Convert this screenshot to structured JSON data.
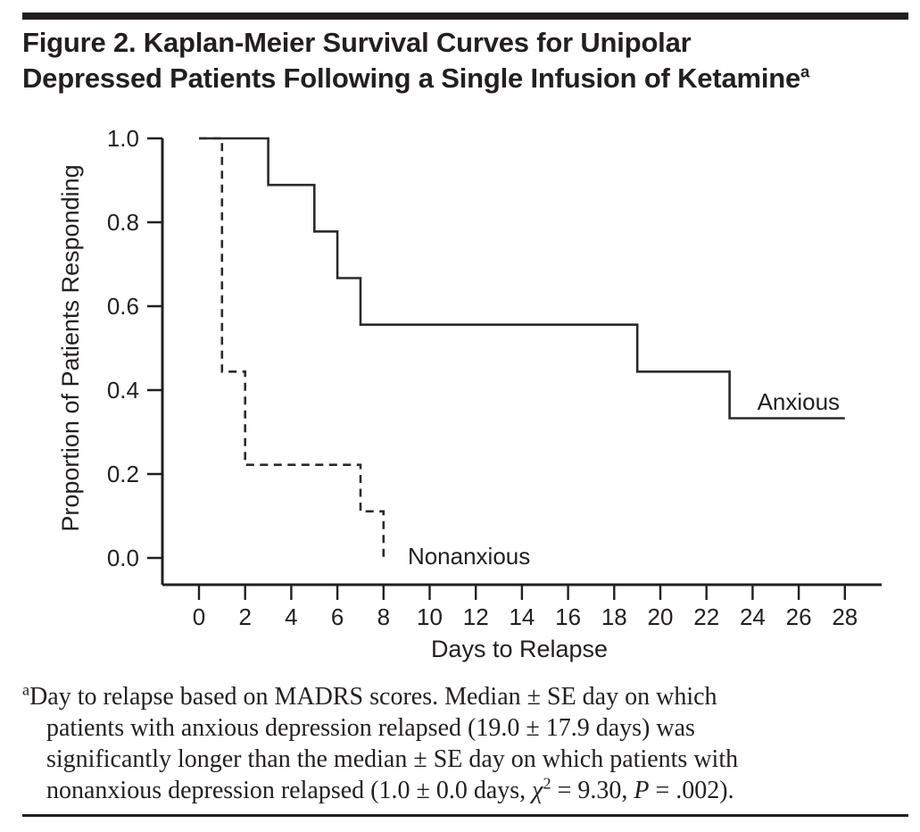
{
  "page": {
    "background": "#ffffff",
    "ink_color": "#231f20",
    "title": {
      "line1": "Figure 2. Kaplan-Meier Survival Curves for Unipolar",
      "line2": "Depressed Patients Following a Single Infusion of Ketamine",
      "superscript": "a"
    }
  },
  "chart_data": {
    "type": "line",
    "variant": "kaplan-meier-step",
    "title": "",
    "xlabel": "Days to Relapse",
    "ylabel": "Proportion of Patients Responding",
    "xlim": [
      0,
      28
    ],
    "ylim": [
      0.0,
      1.0
    ],
    "grid": false,
    "legend_position": "inline-labels",
    "line_color": "#2b2a29",
    "xticks": [
      {
        "value": 0,
        "label": "0"
      },
      {
        "value": 2,
        "label": "2"
      },
      {
        "value": 4,
        "label": "4"
      },
      {
        "value": 6,
        "label": "6"
      },
      {
        "value": 8,
        "label": "8"
      },
      {
        "value": 10,
        "label": "10"
      },
      {
        "value": 12,
        "label": "12"
      },
      {
        "value": 14,
        "label": "14"
      },
      {
        "value": 16,
        "label": "16"
      },
      {
        "value": 18,
        "label": "18"
      },
      {
        "value": 20,
        "label": "20"
      },
      {
        "value": 22,
        "label": "22"
      },
      {
        "value": 24,
        "label": "24"
      },
      {
        "value": 26,
        "label": "26"
      },
      {
        "value": 28,
        "label": "28"
      }
    ],
    "yticks": [
      {
        "value": 1.0,
        "label": "1.0"
      },
      {
        "value": 0.8,
        "label": "0.8"
      },
      {
        "value": 0.6,
        "label": "0.6"
      },
      {
        "value": 0.4,
        "label": "0.4"
      },
      {
        "value": 0.2,
        "label": "0.2"
      },
      {
        "value": 0.0,
        "label": "0.0"
      }
    ],
    "series": [
      {
        "name": "Anxious",
        "style": "solid",
        "label": {
          "text": "Anxious",
          "x": 24.2,
          "y": 0.353
        },
        "points": [
          [
            0,
            1.0
          ],
          [
            3,
            1.0
          ],
          [
            3,
            0.889
          ],
          [
            5,
            0.889
          ],
          [
            5,
            0.778
          ],
          [
            6,
            0.778
          ],
          [
            6,
            0.667
          ],
          [
            7,
            0.667
          ],
          [
            7,
            0.556
          ],
          [
            19,
            0.556
          ],
          [
            19,
            0.444
          ],
          [
            23,
            0.444
          ],
          [
            23,
            0.333
          ],
          [
            28,
            0.333
          ]
        ]
      },
      {
        "name": "Nonanxious",
        "style": "dashed",
        "label": {
          "text": "Nonanxious",
          "x": 9.05,
          "y": -0.015
        },
        "points": [
          [
            0,
            1.0
          ],
          [
            1,
            1.0
          ],
          [
            1,
            0.444
          ],
          [
            2,
            0.444
          ],
          [
            2,
            0.222
          ],
          [
            7,
            0.222
          ],
          [
            7,
            0.111
          ],
          [
            8,
            0.111
          ],
          [
            8,
            0.0
          ]
        ]
      }
    ]
  },
  "footnote": {
    "lines": [
      [
        {
          "t": "a",
          "s": "sup"
        },
        {
          "t": "Day to relapse based on MADRS scores. Median ± SE day on which",
          "s": ""
        }
      ],
      [
        {
          "t": "patients with anxious depression relapsed (19.0 ± 17.9 days) was",
          "s": ""
        }
      ],
      [
        {
          "t": "significantly longer than the median ± SE day on which patients with",
          "s": ""
        }
      ],
      [
        {
          "t": "nonanxious depression relapsed (1.0 ± 0.0 days, ",
          "s": ""
        },
        {
          "t": "χ",
          "s": "i"
        },
        {
          "t": "2",
          "s": "sup"
        },
        {
          "t": " = 9.30, ",
          "s": ""
        },
        {
          "t": "P",
          "s": "i"
        },
        {
          "t": " = .002).",
          "s": ""
        }
      ]
    ]
  }
}
